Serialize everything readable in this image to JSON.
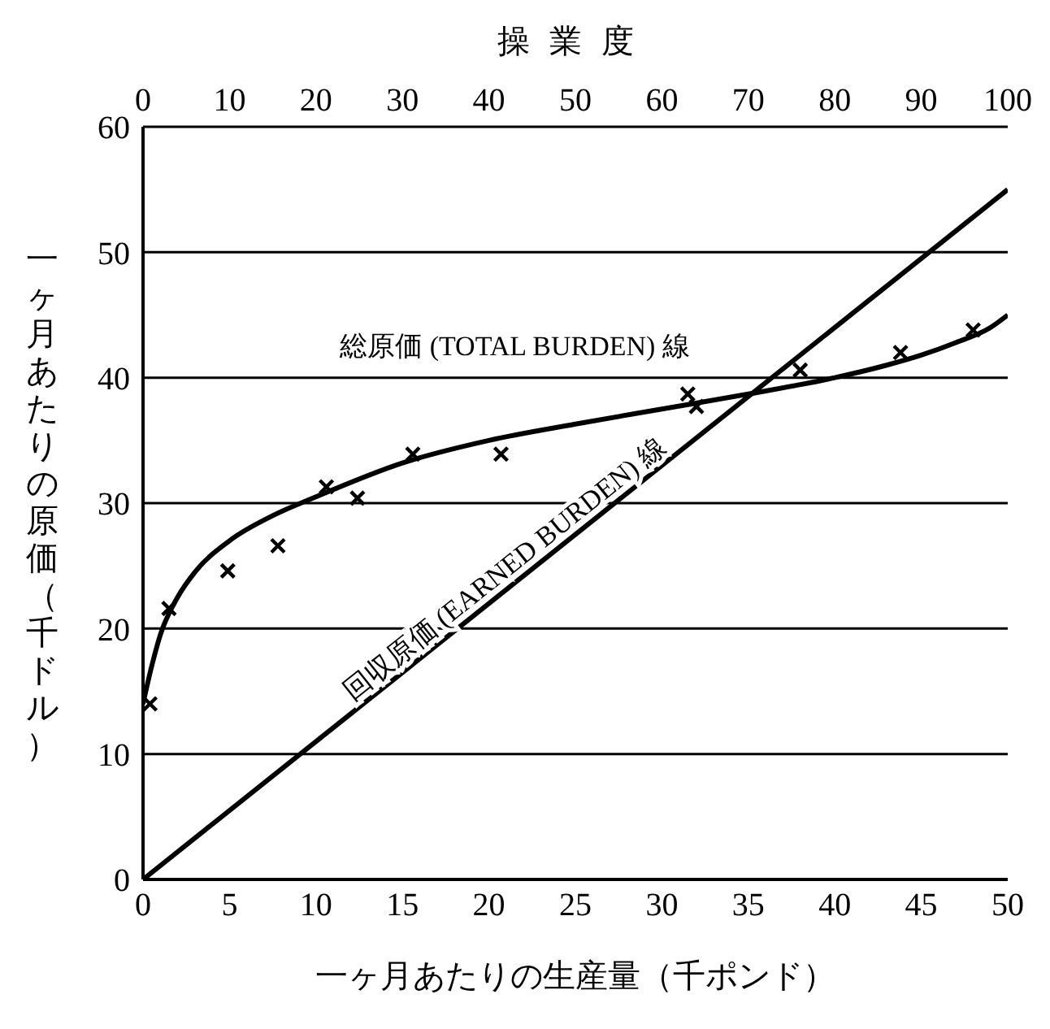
{
  "chart_data": {
    "type": "line",
    "xlabel": "一ヶ月あたりの生産量（千ポンド）",
    "ylabel": "一ヶ月あたりの原価（千ドル）",
    "x2label": "操業度",
    "xlim": [
      0,
      50
    ],
    "xticks": [
      0,
      5,
      10,
      15,
      20,
      25,
      30,
      35,
      40,
      45,
      50
    ],
    "ylim": [
      0,
      60
    ],
    "yticks": [
      0,
      10,
      20,
      30,
      40,
      50,
      60
    ],
    "x2lim": [
      0,
      100
    ],
    "x2ticks": [
      0,
      10,
      20,
      30,
      40,
      50,
      60,
      70,
      80,
      90,
      100
    ],
    "grid": true,
    "legend": false,
    "series": [
      {
        "type": "scatter",
        "color": "#000000",
        "marker": "cross",
        "x": [
          0.4,
          1.5,
          4.9,
          7.8,
          10.6,
          12.4,
          15.6,
          20.7,
          31.5,
          32.0,
          38.0,
          43.8,
          48.0
        ],
        "values": [
          14.0,
          21.6,
          24.6,
          26.6,
          31.3,
          30.4,
          33.9,
          33.9,
          38.7,
          37.7,
          40.6,
          42.0,
          43.8
        ]
      },
      {
        "color": "#000000",
        "marker": "none",
        "line_style": "solid",
        "x": [
          0,
          0.5,
          1,
          2,
          3,
          5,
          7.5,
          10,
          15,
          20,
          25,
          30,
          35,
          40,
          43,
          45,
          47,
          49,
          50
        ],
        "values": [
          14,
          17,
          19.5,
          22.5,
          24.5,
          27,
          29,
          30.5,
          33.2,
          35,
          36.3,
          37.5,
          38.7,
          40,
          41,
          41.8,
          42.8,
          44,
          45
        ]
      },
      {
        "color": "#000000",
        "marker": "none",
        "line_style": "solid",
        "x": [
          0,
          50
        ],
        "values": [
          0,
          55
        ]
      }
    ],
    "annotations": [
      "総原価 (TOTAL BURDEN) 線",
      "回収原価 (EARNED BURDEN) 線"
    ]
  }
}
